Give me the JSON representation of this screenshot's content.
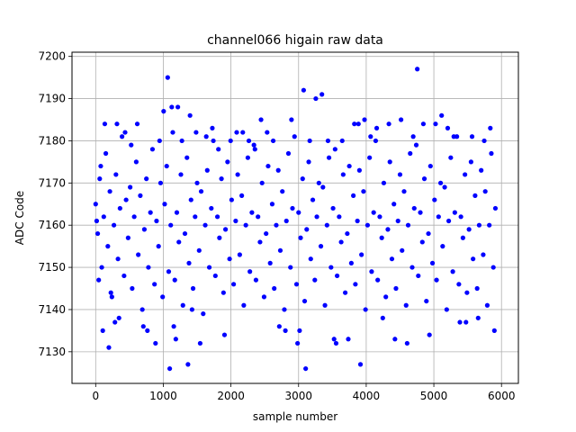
{
  "chart_data": {
    "type": "scatter",
    "title": "channel066 higain raw data",
    "xlabel": "sample number",
    "ylabel": "ADC Code",
    "xlim": [
      -350,
      6250
    ],
    "ylim": [
      7122.5,
      7201
    ],
    "x_ticks": [
      0,
      1000,
      2000,
      3000,
      4000,
      5000,
      6000
    ],
    "y_ticks": [
      7130,
      7140,
      7150,
      7160,
      7170,
      7180,
      7190,
      7200
    ],
    "grid": true,
    "marker_color": "#0000ff",
    "series": [
      {
        "points": [
          [
            0,
            7165
          ],
          [
            30,
            7158
          ],
          [
            60,
            7171
          ],
          [
            90,
            7150
          ],
          [
            120,
            7162
          ],
          [
            150,
            7177
          ],
          [
            180,
            7155
          ],
          [
            210,
            7168
          ],
          [
            240,
            7143
          ],
          [
            270,
            7160
          ],
          [
            300,
            7172
          ],
          [
            330,
            7152
          ],
          [
            360,
            7164
          ],
          [
            390,
            7181
          ],
          [
            420,
            7148
          ],
          [
            450,
            7166
          ],
          [
            480,
            7157
          ],
          [
            510,
            7169
          ],
          [
            540,
            7145
          ],
          [
            570,
            7162
          ],
          [
            600,
            7175
          ],
          [
            630,
            7153
          ],
          [
            660,
            7167
          ],
          [
            690,
            7140
          ],
          [
            720,
            7159
          ],
          [
            750,
            7171
          ],
          [
            780,
            7150
          ],
          [
            810,
            7163
          ],
          [
            840,
            7178
          ],
          [
            870,
            7146
          ],
          [
            900,
            7161
          ],
          [
            930,
            7155
          ],
          [
            960,
            7170
          ],
          [
            990,
            7143
          ],
          [
            1020,
            7165
          ],
          [
            1050,
            7174
          ],
          [
            1080,
            7149
          ],
          [
            1110,
            7160
          ],
          [
            1140,
            7182
          ],
          [
            1170,
            7147
          ],
          [
            1200,
            7163
          ],
          [
            1230,
            7156
          ],
          [
            1260,
            7172
          ],
          [
            1290,
            7141
          ],
          [
            1320,
            7158
          ],
          [
            1350,
            7176
          ],
          [
            1380,
            7151
          ],
          [
            1410,
            7166
          ],
          [
            1440,
            7145
          ],
          [
            1470,
            7162
          ],
          [
            1500,
            7170
          ],
          [
            1530,
            7154
          ],
          [
            1560,
            7168
          ],
          [
            1590,
            7139
          ],
          [
            1620,
            7160
          ],
          [
            1650,
            7173
          ],
          [
            1680,
            7150
          ],
          [
            1710,
            7164
          ],
          [
            1740,
            7180
          ],
          [
            1770,
            7148
          ],
          [
            1800,
            7162
          ],
          [
            1830,
            7157
          ],
          [
            1860,
            7171
          ],
          [
            1890,
            7144
          ],
          [
            1920,
            7159
          ],
          [
            1950,
            7175
          ],
          [
            1980,
            7152
          ],
          [
            2010,
            7166
          ],
          [
            2040,
            7146
          ],
          [
            2070,
            7161
          ],
          [
            2100,
            7172
          ],
          [
            2130,
            7153
          ],
          [
            2160,
            7167
          ],
          [
            2190,
            7141
          ],
          [
            2220,
            7160
          ],
          [
            2250,
            7176
          ],
          [
            2280,
            7149
          ],
          [
            2310,
            7163
          ],
          [
            2340,
            7179
          ],
          [
            2370,
            7147
          ],
          [
            2400,
            7162
          ],
          [
            2430,
            7156
          ],
          [
            2460,
            7170
          ],
          [
            2490,
            7143
          ],
          [
            2520,
            7158
          ],
          [
            2550,
            7174
          ],
          [
            2580,
            7151
          ],
          [
            2610,
            7165
          ],
          [
            2640,
            7145
          ],
          [
            2670,
            7160
          ],
          [
            2700,
            7173
          ],
          [
            2730,
            7154
          ],
          [
            2760,
            7168
          ],
          [
            2790,
            7140
          ],
          [
            2820,
            7161
          ],
          [
            2850,
            7177
          ],
          [
            2880,
            7150
          ],
          [
            2910,
            7164
          ],
          [
            2940,
            7181
          ],
          [
            2970,
            7146
          ],
          [
            3000,
            7163
          ],
          [
            3030,
            7157
          ],
          [
            3060,
            7171
          ],
          [
            3090,
            7142
          ],
          [
            3120,
            7159
          ],
          [
            3150,
            7175
          ],
          [
            3180,
            7152
          ],
          [
            3210,
            7166
          ],
          [
            3240,
            7147
          ],
          [
            3270,
            7162
          ],
          [
            3300,
            7170
          ],
          [
            3330,
            7155
          ],
          [
            3360,
            7169
          ],
          [
            3390,
            7141
          ],
          [
            3420,
            7160
          ],
          [
            3450,
            7176
          ],
          [
            3480,
            7150
          ],
          [
            3510,
            7164
          ],
          [
            3540,
            7178
          ],
          [
            3570,
            7148
          ],
          [
            3600,
            7162
          ],
          [
            3630,
            7156
          ],
          [
            3660,
            7172
          ],
          [
            3690,
            7144
          ],
          [
            3720,
            7158
          ],
          [
            3750,
            7174
          ],
          [
            3780,
            7151
          ],
          [
            3810,
            7167
          ],
          [
            3840,
            7146
          ],
          [
            3870,
            7161
          ],
          [
            3900,
            7173
          ],
          [
            3930,
            7153
          ],
          [
            3960,
            7168
          ],
          [
            3990,
            7140
          ],
          [
            4020,
            7160
          ],
          [
            4050,
            7176
          ],
          [
            4080,
            7149
          ],
          [
            4110,
            7163
          ],
          [
            4140,
            7180
          ],
          [
            4170,
            7147
          ],
          [
            4200,
            7162
          ],
          [
            4230,
            7157
          ],
          [
            4260,
            7170
          ],
          [
            4290,
            7143
          ],
          [
            4320,
            7159
          ],
          [
            4350,
            7175
          ],
          [
            4380,
            7152
          ],
          [
            4410,
            7165
          ],
          [
            4440,
            7145
          ],
          [
            4470,
            7161
          ],
          [
            4500,
            7172
          ],
          [
            4530,
            7154
          ],
          [
            4560,
            7168
          ],
          [
            4590,
            7141
          ],
          [
            4620,
            7160
          ],
          [
            4650,
            7177
          ],
          [
            4680,
            7150
          ],
          [
            4710,
            7164
          ],
          [
            4740,
            7179
          ],
          [
            4770,
            7148
          ],
          [
            4800,
            7163
          ],
          [
            4830,
            7156
          ],
          [
            4860,
            7171
          ],
          [
            4890,
            7142
          ],
          [
            4920,
            7158
          ],
          [
            4950,
            7174
          ],
          [
            4980,
            7151
          ],
          [
            5010,
            7166
          ],
          [
            5040,
            7147
          ],
          [
            5070,
            7162
          ],
          [
            5100,
            7170
          ],
          [
            5130,
            7155
          ],
          [
            5160,
            7169
          ],
          [
            5190,
            7140
          ],
          [
            5220,
            7161
          ],
          [
            5250,
            7176
          ],
          [
            5280,
            7149
          ],
          [
            5310,
            7163
          ],
          [
            5340,
            7181
          ],
          [
            5370,
            7146
          ],
          [
            5400,
            7162
          ],
          [
            5430,
            7157
          ],
          [
            5460,
            7172
          ],
          [
            5490,
            7144
          ],
          [
            5520,
            7159
          ],
          [
            5550,
            7175
          ],
          [
            5580,
            7152
          ],
          [
            5610,
            7167
          ],
          [
            5640,
            7145
          ],
          [
            5670,
            7160
          ],
          [
            5700,
            7173
          ],
          [
            5730,
            7153
          ],
          [
            5760,
            7168
          ],
          [
            5790,
            7141
          ],
          [
            5820,
            7160
          ],
          [
            5850,
            7177
          ],
          [
            5880,
            7150
          ],
          [
            5910,
            7164
          ],
          [
            15,
            7161
          ],
          [
            45,
            7147
          ],
          [
            75,
            7174
          ],
          [
            105,
            7135
          ],
          [
            135,
            7184
          ],
          [
            195,
            7131
          ],
          [
            225,
            7144
          ],
          [
            285,
            7137
          ],
          [
            315,
            7184
          ],
          [
            345,
            7138
          ],
          [
            435,
            7182
          ],
          [
            525,
            7179
          ],
          [
            615,
            7184
          ],
          [
            705,
            7136
          ],
          [
            765,
            7135
          ],
          [
            885,
            7132
          ],
          [
            945,
            7180
          ],
          [
            1005,
            7187
          ],
          [
            1065,
            7195
          ],
          [
            1095,
            7126
          ],
          [
            1125,
            7188
          ],
          [
            1155,
            7136
          ],
          [
            1185,
            7133
          ],
          [
            1215,
            7188
          ],
          [
            1275,
            7180
          ],
          [
            1365,
            7127
          ],
          [
            1395,
            7186
          ],
          [
            1425,
            7140
          ],
          [
            1485,
            7182
          ],
          [
            1545,
            7132
          ],
          [
            1635,
            7181
          ],
          [
            1725,
            7183
          ],
          [
            1815,
            7178
          ],
          [
            1905,
            7134
          ],
          [
            1995,
            7180
          ],
          [
            2085,
            7182
          ],
          [
            2175,
            7182
          ],
          [
            2265,
            7180
          ],
          [
            2355,
            7178
          ],
          [
            2445,
            7185
          ],
          [
            2535,
            7182
          ],
          [
            2625,
            7180
          ],
          [
            2715,
            7136
          ],
          [
            2805,
            7135
          ],
          [
            2895,
            7185
          ],
          [
            2985,
            7132
          ],
          [
            3015,
            7135
          ],
          [
            3075,
            7192
          ],
          [
            3105,
            7126
          ],
          [
            3165,
            7180
          ],
          [
            3255,
            7190
          ],
          [
            3345,
            7191
          ],
          [
            3435,
            7180
          ],
          [
            3525,
            7133
          ],
          [
            3555,
            7132
          ],
          [
            3645,
            7180
          ],
          [
            3735,
            7133
          ],
          [
            3825,
            7184
          ],
          [
            3885,
            7184
          ],
          [
            3915,
            7127
          ],
          [
            3975,
            7185
          ],
          [
            4065,
            7181
          ],
          [
            4155,
            7183
          ],
          [
            4245,
            7138
          ],
          [
            4335,
            7184
          ],
          [
            4425,
            7133
          ],
          [
            4515,
            7185
          ],
          [
            4605,
            7132
          ],
          [
            4695,
            7181
          ],
          [
            4755,
            7197
          ],
          [
            4845,
            7184
          ],
          [
            4935,
            7134
          ],
          [
            5025,
            7184
          ],
          [
            5115,
            7186
          ],
          [
            5205,
            7183
          ],
          [
            5295,
            7181
          ],
          [
            5385,
            7137
          ],
          [
            5475,
            7137
          ],
          [
            5565,
            7181
          ],
          [
            5655,
            7138
          ],
          [
            5745,
            7180
          ],
          [
            5835,
            7183
          ],
          [
            5895,
            7135
          ]
        ]
      }
    ]
  }
}
